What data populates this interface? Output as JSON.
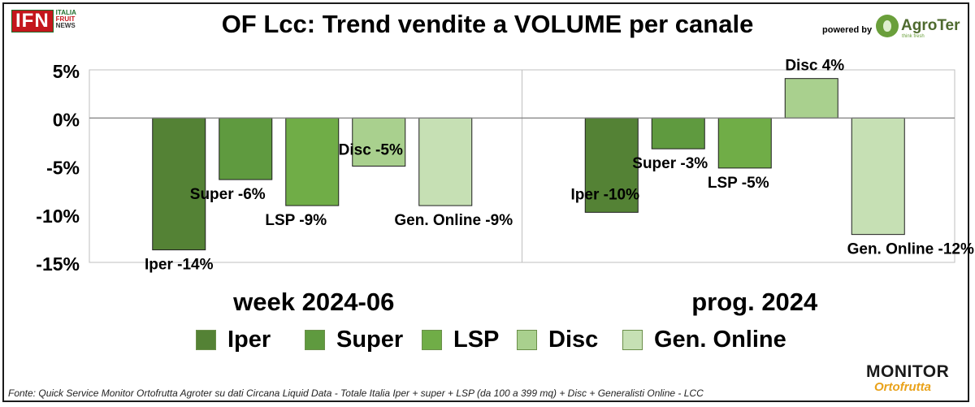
{
  "brand": {
    "ifn_logo": "IFN",
    "ifn_line1": "ITALIA",
    "ifn_line2": "FRUIT",
    "ifn_line3": "NEWS",
    "powered_by": "powered by",
    "agroter_name": "AgroTer",
    "agroter_tagline": "think fresh",
    "monitor_line1": "MONITOR",
    "monitor_line2": "Ortofrutta"
  },
  "header": {
    "title": "OF Lcc: Trend vendite a VOLUME per canale"
  },
  "footer": {
    "source": "Fonte: Quick Service Monitor Ortofrutta Agroter su dati Circana Liquid Data - Totale Italia Iper + super + LSP (da 100 a 399 mq) + Disc + Generalisti Online - LCC"
  },
  "chart_data": {
    "type": "bar",
    "title": "OF Lcc: Trend vendite a VOLUME per canale",
    "categories": [
      "week 2024-06",
      "prog. 2024"
    ],
    "ylim": [
      -15,
      5
    ],
    "yticks": [
      "5%",
      "0%",
      "-5%",
      "-10%",
      "-15%"
    ],
    "ytick_values": [
      5,
      0,
      -5,
      -10,
      -15
    ],
    "grid": false,
    "legend_position": "bottom",
    "series": [
      {
        "name": "Iper",
        "color": "#548235",
        "values": [
          -13.7,
          -9.8
        ],
        "labels": [
          "Iper -14%",
          "Iper -10%"
        ]
      },
      {
        "name": "Super",
        "color": "#5f9a3f",
        "values": [
          -6.4,
          -3.2
        ],
        "labels": [
          "Super -6%",
          "Super -3%"
        ]
      },
      {
        "name": "LSP",
        "color": "#70ad47",
        "values": [
          -9.1,
          -5.2
        ],
        "labels": [
          "LSP -9%",
          "LSP -5%"
        ]
      },
      {
        "name": "Disc",
        "color": "#a9d08e",
        "values": [
          -5.0,
          4.1
        ],
        "labels": [
          "Disc -5%",
          "Disc 4%"
        ]
      },
      {
        "name": "Gen. Online",
        "color": "#c6e0b4",
        "values": [
          -9.1,
          -12.1
        ],
        "labels": [
          "Gen. Online -9%",
          "Gen. Online -12%"
        ]
      }
    ]
  }
}
